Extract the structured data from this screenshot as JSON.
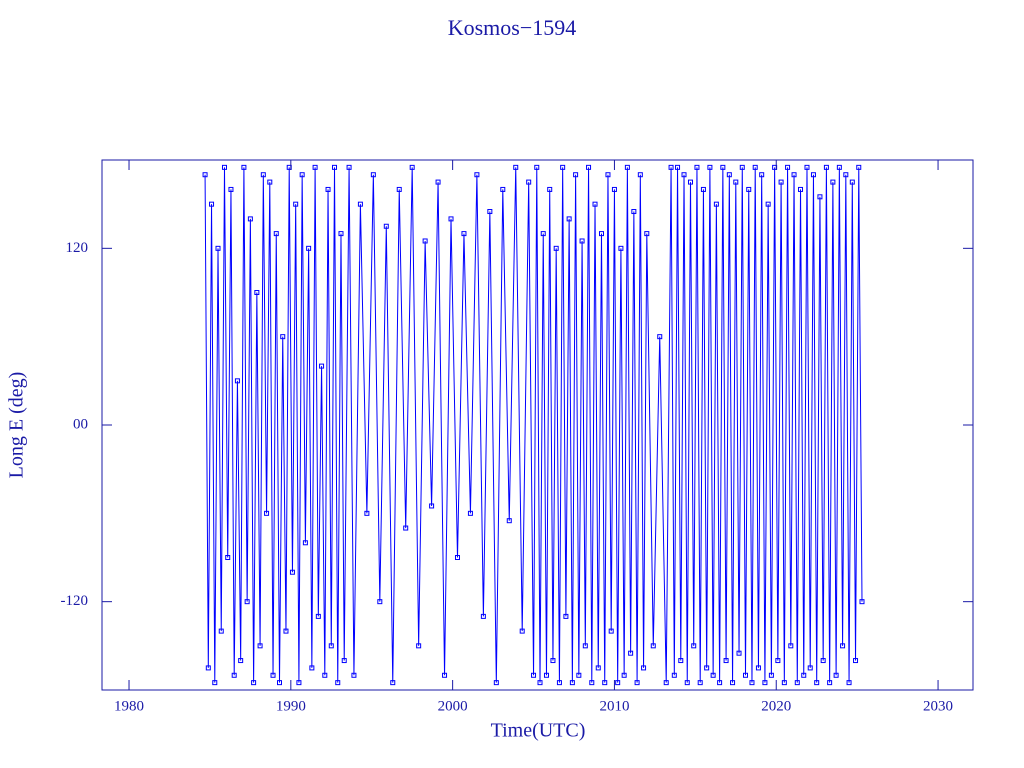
{
  "chart_data": {
    "type": "line",
    "title": "Kosmos−1594",
    "xlabel": "Time(UTC)",
    "ylabel": "Long E (deg)",
    "color": "#0000ff",
    "markers": true,
    "xlim": [
      1978.33,
      2032.16
    ],
    "ylim": [
      -180,
      180
    ],
    "xticks": [
      1980,
      1990,
      2000,
      2010,
      2020,
      2030
    ],
    "yticks": [
      -120,
      {
        "value": 0,
        "label": "00"
      },
      120
    ],
    "x": [
      1984.7,
      1984.9,
      1985.1,
      1985.3,
      1985.5,
      1985.7,
      1985.9,
      1986.1,
      1986.3,
      1986.5,
      1986.7,
      1986.9,
      1987.1,
      1987.3,
      1987.5,
      1987.7,
      1987.9,
      1988.1,
      1988.3,
      1988.5,
      1988.7,
      1988.9,
      1989.1,
      1989.3,
      1989.5,
      1989.7,
      1989.9,
      1990.1,
      1990.3,
      1990.5,
      1990.7,
      1990.9,
      1991.1,
      1991.3,
      1991.5,
      1991.7,
      1991.9,
      1992.1,
      1992.3,
      1992.5,
      1992.7,
      1992.9,
      1993.1,
      1993.3,
      1993.6,
      1993.9,
      1994.3,
      1994.7,
      1995.1,
      1995.5,
      1995.9,
      1996.3,
      1996.7,
      1997.1,
      1997.5,
      1997.9,
      1998.3,
      1998.7,
      1999.1,
      1999.5,
      1999.9,
      2000.3,
      2000.7,
      2001.1,
      2001.5,
      2001.9,
      2002.3,
      2002.7,
      2003.1,
      2003.5,
      2003.9,
      2004.3,
      2004.7,
      2005.0,
      2005.2,
      2005.4,
      2005.6,
      2005.8,
      2006.0,
      2006.2,
      2006.4,
      2006.6,
      2006.8,
      2007.0,
      2007.2,
      2007.4,
      2007.6,
      2007.8,
      2008.0,
      2008.2,
      2008.4,
      2008.6,
      2008.8,
      2009.0,
      2009.2,
      2009.4,
      2009.6,
      2009.8,
      2010.0,
      2010.2,
      2010.4,
      2010.6,
      2010.8,
      2011.0,
      2011.2,
      2011.4,
      2011.6,
      2011.8,
      2012.0,
      2012.4,
      2012.8,
      2013.2,
      2013.5,
      2013.7,
      2013.9,
      2014.1,
      2014.3,
      2014.5,
      2014.7,
      2014.9,
      2015.1,
      2015.3,
      2015.5,
      2015.7,
      2015.9,
      2016.1,
      2016.3,
      2016.5,
      2016.7,
      2016.9,
      2017.1,
      2017.3,
      2017.5,
      2017.7,
      2017.9,
      2018.1,
      2018.3,
      2018.5,
      2018.7,
      2018.9,
      2019.1,
      2019.3,
      2019.5,
      2019.7,
      2019.9,
      2020.1,
      2020.3,
      2020.5,
      2020.7,
      2020.9,
      2021.1,
      2021.3,
      2021.5,
      2021.7,
      2021.9,
      2022.1,
      2022.3,
      2022.5,
      2022.7,
      2022.9,
      2023.1,
      2023.3,
      2023.5,
      2023.7,
      2023.9,
      2024.1,
      2024.3,
      2024.5,
      2024.7,
      2024.9,
      2025.1,
      2025.3
    ],
    "values": [
      170,
      -165,
      150,
      -175,
      120,
      -140,
      175,
      -90,
      160,
      -170,
      30,
      -160,
      175,
      -120,
      140,
      -175,
      90,
      -150,
      170,
      -60,
      165,
      -170,
      130,
      -175,
      60,
      -140,
      175,
      -100,
      150,
      -175,
      170,
      -80,
      120,
      -165,
      175,
      -130,
      40,
      -170,
      160,
      -150,
      175,
      -175,
      130,
      -160,
      175,
      -170,
      150,
      -60,
      170,
      -120,
      135,
      -175,
      160,
      -70,
      175,
      -150,
      125,
      -55,
      165,
      -170,
      140,
      -90,
      130,
      -60,
      170,
      -130,
      145,
      -175,
      160,
      -65,
      175,
      -140,
      165,
      -170,
      175,
      -175,
      130,
      -170,
      160,
      -160,
      120,
      -175,
      175,
      -130,
      140,
      -175,
      170,
      -170,
      125,
      -150,
      175,
      -175,
      150,
      -165,
      130,
      -175,
      170,
      -140,
      160,
      -175,
      120,
      -170,
      175,
      -155,
      145,
      -175,
      170,
      -165,
      130,
      -150,
      60,
      -175,
      175,
      -170,
      175,
      -160,
      170,
      -175,
      165,
      -150,
      175,
      -175,
      160,
      -165,
      175,
      -170,
      150,
      -175,
      175,
      -160,
      170,
      -175,
      165,
      -155,
      175,
      -170,
      160,
      -175,
      175,
      -165,
      170,
      -175,
      150,
      -170,
      175,
      -160,
      165,
      -175,
      175,
      -150,
      170,
      -175,
      160,
      -170,
      175,
      -165,
      170,
      -175,
      155,
      -160,
      175,
      -175,
      165,
      -170,
      175,
      -150,
      170,
      -175,
      165,
      -160,
      175,
      -120
    ]
  }
}
